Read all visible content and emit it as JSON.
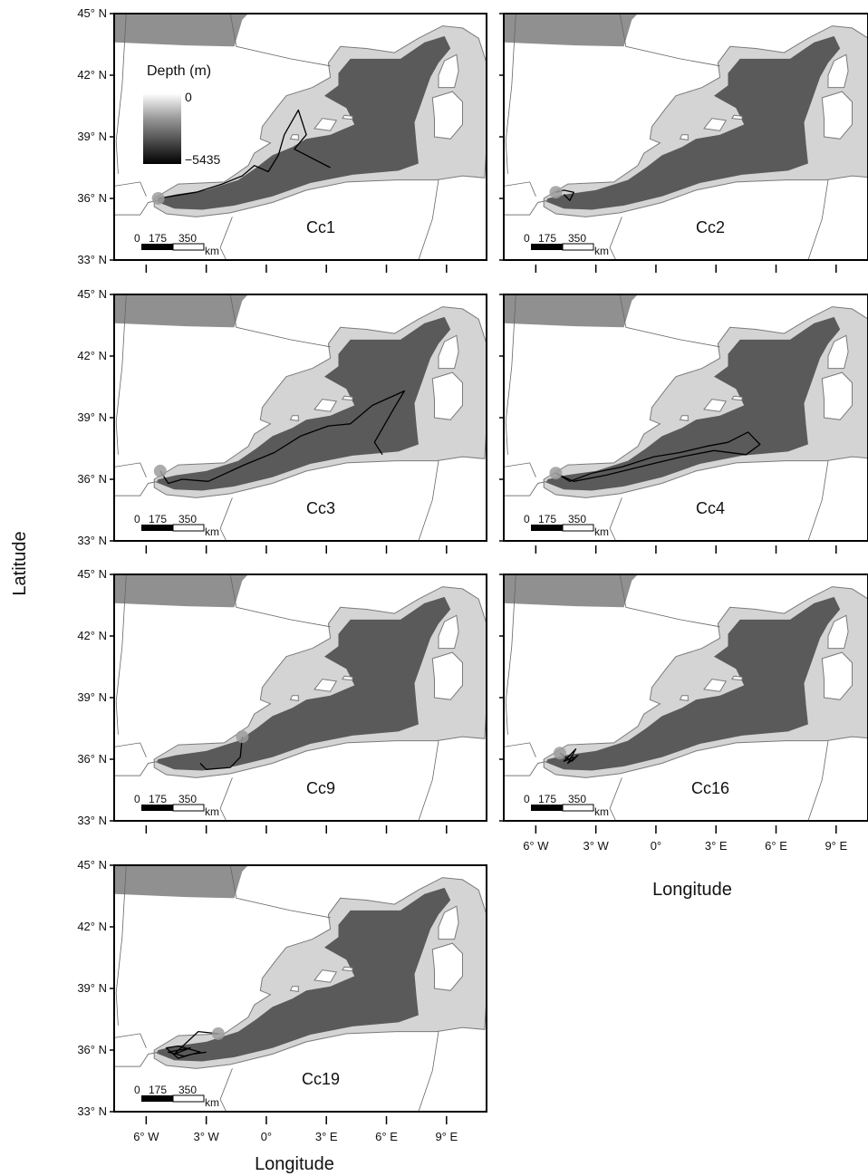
{
  "figure": {
    "y_axis_title": "Latitude",
    "x_axis_title": "Longitude",
    "lat_ticks": [
      "45° N",
      "42° N",
      "39° N",
      "36° N",
      "33° N"
    ],
    "lon_ticks": [
      "6° W",
      "3° W",
      "0°",
      "3° E",
      "6° E",
      "9° E"
    ],
    "scale_bar": {
      "labels": [
        "0",
        "175",
        "350"
      ],
      "unit": "km"
    },
    "depth_legend": {
      "title": "Depth (m)",
      "max_label": "0",
      "min_label": "−5435"
    },
    "colors": {
      "land": "#ffffff",
      "deep_sea": "#5a5a5a",
      "shelf": "#d4d4d4",
      "coast": "#7a7a7a",
      "track": "#000000",
      "release_marker": "#9c9c9c"
    }
  },
  "panels": [
    {
      "label": "Cc1",
      "track": [
        [
          -5.4,
          36.0
        ],
        [
          -3.5,
          36.3
        ],
        [
          -2.2,
          36.7
        ],
        [
          -1.2,
          37.1
        ],
        [
          -0.6,
          37.6
        ],
        [
          0.1,
          37.3
        ],
        [
          0.6,
          38.1
        ],
        [
          0.9,
          39.1
        ],
        [
          1.6,
          40.3
        ],
        [
          2.0,
          39.1
        ],
        [
          1.4,
          38.4
        ],
        [
          2.8,
          37.7
        ],
        [
          3.2,
          37.5
        ]
      ]
    },
    {
      "label": "Cc2",
      "track": [
        [
          -5.0,
          36.3
        ],
        [
          -4.6,
          36.4
        ],
        [
          -4.1,
          36.3
        ],
        [
          -4.3,
          35.9
        ],
        [
          -4.6,
          36.2
        ]
      ]
    },
    {
      "label": "Cc3",
      "track": [
        [
          -5.3,
          36.4
        ],
        [
          -4.9,
          35.8
        ],
        [
          -4.2,
          36.0
        ],
        [
          -2.9,
          35.9
        ],
        [
          -1.1,
          36.7
        ],
        [
          0.4,
          37.3
        ],
        [
          1.7,
          38.1
        ],
        [
          3.1,
          38.6
        ],
        [
          4.2,
          38.7
        ],
        [
          5.3,
          39.6
        ],
        [
          6.9,
          40.3
        ],
        [
          6.4,
          39.5
        ],
        [
          5.4,
          37.8
        ],
        [
          5.8,
          37.2
        ]
      ]
    },
    {
      "label": "Cc4",
      "track": [
        [
          -5.0,
          36.3
        ],
        [
          -4.3,
          35.9
        ],
        [
          -3.2,
          36.3
        ],
        [
          -1.7,
          36.6
        ],
        [
          -0.1,
          37.1
        ],
        [
          1.2,
          37.3
        ],
        [
          2.5,
          37.6
        ],
        [
          3.6,
          37.8
        ],
        [
          4.6,
          38.3
        ],
        [
          5.2,
          37.7
        ],
        [
          4.5,
          37.2
        ],
        [
          2.9,
          37.4
        ],
        [
          1.3,
          37.1
        ],
        [
          -0.4,
          36.7
        ],
        [
          -2.5,
          36.2
        ],
        [
          -4.1,
          35.9
        ],
        [
          -4.8,
          36.2
        ]
      ]
    },
    {
      "label": "Cc9",
      "track": [
        [
          -1.2,
          37.1
        ],
        [
          -1.3,
          36.1
        ],
        [
          -1.8,
          35.6
        ],
        [
          -3.0,
          35.5
        ],
        [
          -3.3,
          35.8
        ]
      ]
    },
    {
      "label": "Cc16",
      "track": [
        [
          -4.8,
          36.3
        ],
        [
          -4.2,
          35.9
        ],
        [
          -3.9,
          36.2
        ],
        [
          -4.4,
          35.8
        ],
        [
          -4.0,
          36.5
        ],
        [
          -4.6,
          35.9
        ],
        [
          -4.1,
          36.1
        ]
      ]
    },
    {
      "label": "Cc19",
      "track": [
        [
          -2.4,
          36.8
        ],
        [
          -3.4,
          36.9
        ],
        [
          -4.6,
          35.8
        ],
        [
          -3.8,
          36.1
        ],
        [
          -4.9,
          35.9
        ],
        [
          -4.1,
          35.7
        ],
        [
          -3.3,
          35.9
        ],
        [
          -4.4,
          36.2
        ],
        [
          -5.0,
          36.1
        ],
        [
          -4.4,
          35.6
        ],
        [
          -3.7,
          35.8
        ],
        [
          -3.0,
          35.9
        ]
      ]
    }
  ]
}
